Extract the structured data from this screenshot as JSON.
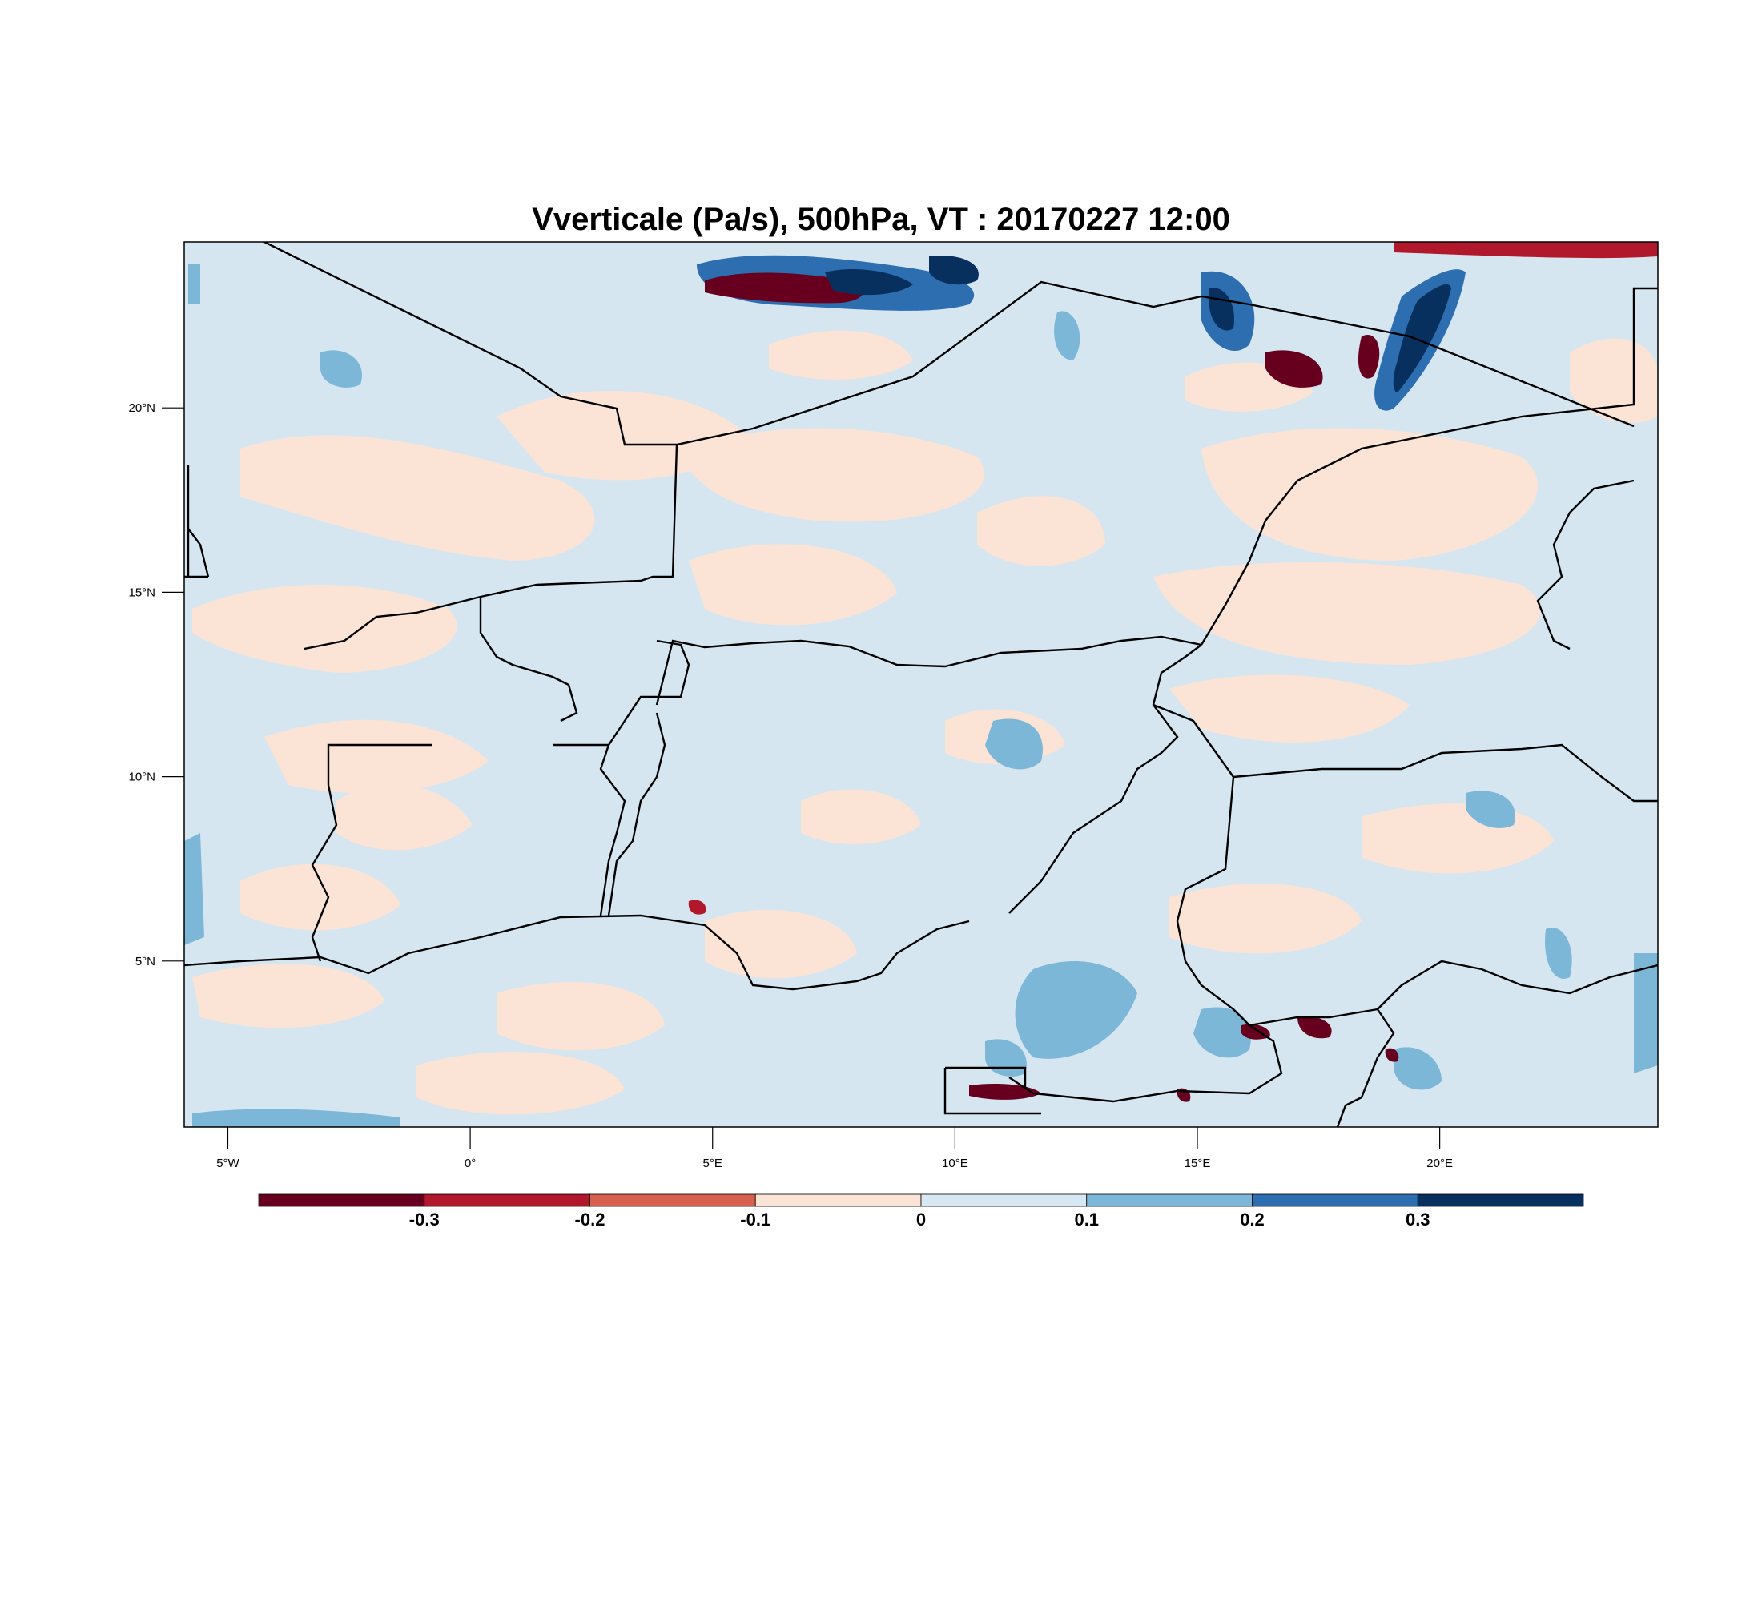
{
  "title": "Vverticale (Pa/s), 500hPa, VT : 20170227  12:00",
  "map": {
    "lon_range": [
      -5.9,
      24.5
    ],
    "lat_range": [
      0.5,
      24.5
    ],
    "lon_ticks": [
      {
        "value": -5,
        "label": "5°W"
      },
      {
        "value": 0,
        "label": "0°"
      },
      {
        "value": 5,
        "label": "5°E"
      },
      {
        "value": 10,
        "label": "10°E"
      },
      {
        "value": 15,
        "label": "15°E"
      },
      {
        "value": 20,
        "label": "20°E"
      }
    ],
    "lat_ticks": [
      {
        "value": 5,
        "label": "5°N"
      },
      {
        "value": 10,
        "label": "10°N"
      },
      {
        "value": 15,
        "label": "15°N"
      },
      {
        "value": 20,
        "label": "20°N"
      }
    ],
    "background_color": "#d6e6f0"
  },
  "colorbar": {
    "colors": [
      "#67001f",
      "#b2182b",
      "#d6604d",
      "#fbe3d6",
      "#d8e8f2",
      "#7db7d8",
      "#2c6eb0",
      "#08305e"
    ],
    "boundaries": [
      "-0.3",
      "-0.2",
      "-0.1",
      "0",
      "0.1",
      "0.2",
      "0.3"
    ]
  }
}
